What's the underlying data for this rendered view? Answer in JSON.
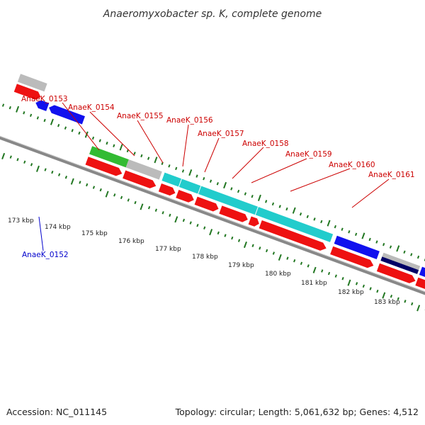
{
  "title": "Anaeromyxobacter sp. K, complete genome",
  "footer": {
    "accession": "Accession: NC_011145",
    "summary": "Topology: circular; Length: 5,061,632 bp; Genes: 4,512"
  },
  "colors": {
    "red": "#ee1111",
    "blue": "#1111ee",
    "green": "#33bb33",
    "cyan": "#22cccc",
    "grey": "#bbbbbb",
    "navy": "#000066",
    "tick": "#227722",
    "label_red": "#cc0000",
    "label_blue": "#0000cc",
    "backbone": "#888888"
  },
  "scale_labels": [
    "173 kbp",
    "174 kbp",
    "175 kbp",
    "176 kbp",
    "177 kbp",
    "178 kbp",
    "179 kbp",
    "180 kbp",
    "181 kbp",
    "182 kbp",
    "183 kbp"
  ],
  "labels": {
    "AnaeK_0152": "AnaeK_0152",
    "AnaeK_0153": "AnaeK_0153",
    "AnaeK_0154": "AnaeK_0154",
    "AnaeK_0155": "AnaeK_0155",
    "AnaeK_0156": "AnaeK_0156",
    "AnaeK_0157": "AnaeK_0157",
    "AnaeK_0158": "AnaeK_0158",
    "AnaeK_0159": "AnaeK_0159",
    "AnaeK_0160": "AnaeK_0160",
    "AnaeK_0161": "AnaeK_0161"
  }
}
